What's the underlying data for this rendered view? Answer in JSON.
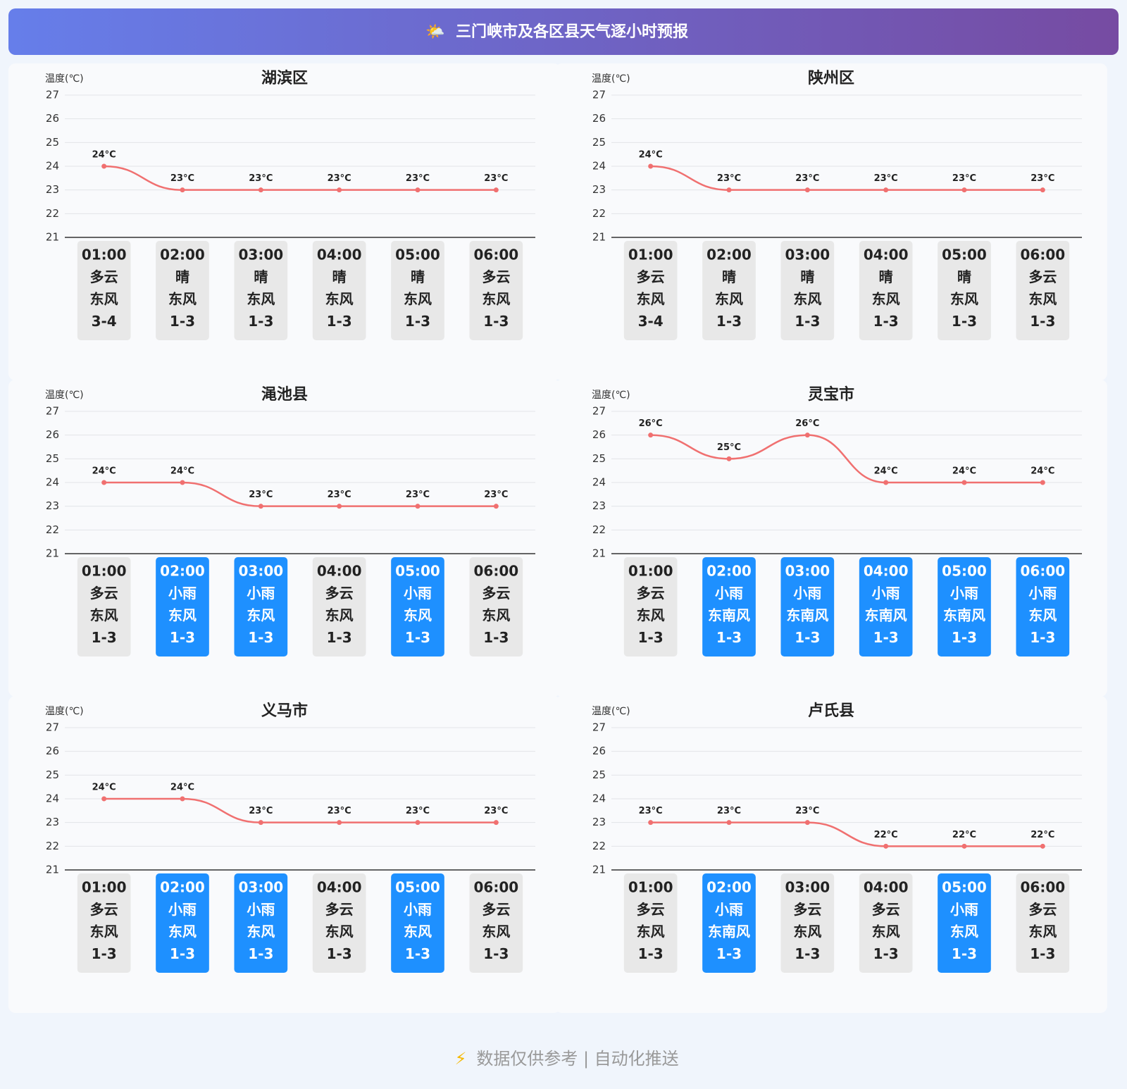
{
  "header": {
    "icon": "🌤️",
    "title": "三门峡市及各区县天气逐小时预报"
  },
  "footer": {
    "icon": "⚡",
    "text": "数据仅供参考 | 自动化推送"
  },
  "chart_data": [
    {
      "type": "line",
      "title": "湖滨区",
      "y_label": "温度(℃)",
      "color": "#f07070",
      "grid": true,
      "categories": [
        "01:00",
        "02:00",
        "03:00",
        "04:00",
        "05:00",
        "06:00"
      ],
      "values": [
        24,
        23,
        23,
        23,
        23,
        23
      ],
      "value_labels": [
        "24°C",
        "23°C",
        "23°C",
        "23°C",
        "23°C",
        "23°C"
      ],
      "ylim": [
        21,
        27
      ],
      "yticks": [
        21,
        22,
        23,
        24,
        25,
        26,
        27
      ],
      "cards": [
        {
          "weather": "多云",
          "wind": "东风",
          "level": "3-4",
          "color": "#e8e8e8"
        },
        {
          "weather": "晴",
          "wind": "东风",
          "level": "1-3",
          "color": "#e8e8e8"
        },
        {
          "weather": "晴",
          "wind": "东风",
          "level": "1-3",
          "color": "#e8e8e8"
        },
        {
          "weather": "晴",
          "wind": "东风",
          "level": "1-3",
          "color": "#e8e8e8"
        },
        {
          "weather": "晴",
          "wind": "东风",
          "level": "1-3",
          "color": "#e8e8e8"
        },
        {
          "weather": "多云",
          "wind": "东风",
          "level": "1-3",
          "color": "#e8e8e8"
        }
      ]
    },
    {
      "type": "line",
      "title": "陕州区",
      "y_label": "温度(℃)",
      "color": "#f07070",
      "grid": true,
      "categories": [
        "01:00",
        "02:00",
        "03:00",
        "04:00",
        "05:00",
        "06:00"
      ],
      "values": [
        24,
        23,
        23,
        23,
        23,
        23
      ],
      "value_labels": [
        "24°C",
        "23°C",
        "23°C",
        "23°C",
        "23°C",
        "23°C"
      ],
      "ylim": [
        21,
        27
      ],
      "yticks": [
        21,
        22,
        23,
        24,
        25,
        26,
        27
      ],
      "cards": [
        {
          "weather": "多云",
          "wind": "东风",
          "level": "3-4",
          "color": "#e8e8e8"
        },
        {
          "weather": "晴",
          "wind": "东风",
          "level": "1-3",
          "color": "#e8e8e8"
        },
        {
          "weather": "晴",
          "wind": "东风",
          "level": "1-3",
          "color": "#e8e8e8"
        },
        {
          "weather": "晴",
          "wind": "东风",
          "level": "1-3",
          "color": "#e8e8e8"
        },
        {
          "weather": "晴",
          "wind": "东风",
          "level": "1-3",
          "color": "#e8e8e8"
        },
        {
          "weather": "多云",
          "wind": "东风",
          "level": "1-3",
          "color": "#e8e8e8"
        }
      ]
    },
    {
      "type": "line",
      "title": "渑池县",
      "y_label": "温度(℃)",
      "color": "#f07070",
      "grid": true,
      "categories": [
        "01:00",
        "02:00",
        "03:00",
        "04:00",
        "05:00",
        "06:00"
      ],
      "values": [
        24,
        24,
        23,
        23,
        23,
        23
      ],
      "value_labels": [
        "24°C",
        "24°C",
        "23°C",
        "23°C",
        "23°C",
        "23°C"
      ],
      "ylim": [
        21,
        27
      ],
      "yticks": [
        21,
        22,
        23,
        24,
        25,
        26,
        27
      ],
      "cards": [
        {
          "weather": "多云",
          "wind": "东风",
          "level": "1-3",
          "color": "#e8e8e8"
        },
        {
          "weather": "小雨",
          "wind": "东风",
          "level": "1-3",
          "color": "#1e90ff"
        },
        {
          "weather": "小雨",
          "wind": "东风",
          "level": "1-3",
          "color": "#1e90ff"
        },
        {
          "weather": "多云",
          "wind": "东风",
          "level": "1-3",
          "color": "#e8e8e8"
        },
        {
          "weather": "小雨",
          "wind": "东风",
          "level": "1-3",
          "color": "#1e90ff"
        },
        {
          "weather": "多云",
          "wind": "东风",
          "level": "1-3",
          "color": "#e8e8e8"
        }
      ]
    },
    {
      "type": "line",
      "title": "灵宝市",
      "y_label": "温度(℃)",
      "color": "#f07070",
      "grid": true,
      "categories": [
        "01:00",
        "02:00",
        "03:00",
        "04:00",
        "05:00",
        "06:00"
      ],
      "values": [
        26,
        25,
        26,
        24,
        24,
        24
      ],
      "value_labels": [
        "26°C",
        "25°C",
        "26°C",
        "24°C",
        "24°C",
        "24°C"
      ],
      "ylim": [
        21,
        27
      ],
      "yticks": [
        21,
        22,
        23,
        24,
        25,
        26,
        27
      ],
      "cards": [
        {
          "weather": "多云",
          "wind": "东风",
          "level": "1-3",
          "color": "#e8e8e8"
        },
        {
          "weather": "小雨",
          "wind": "东南风",
          "level": "1-3",
          "color": "#1e90ff"
        },
        {
          "weather": "小雨",
          "wind": "东南风",
          "level": "1-3",
          "color": "#1e90ff"
        },
        {
          "weather": "小雨",
          "wind": "东南风",
          "level": "1-3",
          "color": "#1e90ff"
        },
        {
          "weather": "小雨",
          "wind": "东南风",
          "level": "1-3",
          "color": "#1e90ff"
        },
        {
          "weather": "小雨",
          "wind": "东风",
          "level": "1-3",
          "color": "#1e90ff"
        }
      ]
    },
    {
      "type": "line",
      "title": "义马市",
      "y_label": "温度(℃)",
      "color": "#f07070",
      "grid": true,
      "categories": [
        "01:00",
        "02:00",
        "03:00",
        "04:00",
        "05:00",
        "06:00"
      ],
      "values": [
        24,
        24,
        23,
        23,
        23,
        23
      ],
      "value_labels": [
        "24°C",
        "24°C",
        "23°C",
        "23°C",
        "23°C",
        "23°C"
      ],
      "ylim": [
        21,
        27
      ],
      "yticks": [
        21,
        22,
        23,
        24,
        25,
        26,
        27
      ],
      "cards": [
        {
          "weather": "多云",
          "wind": "东风",
          "level": "1-3",
          "color": "#e8e8e8"
        },
        {
          "weather": "小雨",
          "wind": "东风",
          "level": "1-3",
          "color": "#1e90ff"
        },
        {
          "weather": "小雨",
          "wind": "东风",
          "level": "1-3",
          "color": "#1e90ff"
        },
        {
          "weather": "多云",
          "wind": "东风",
          "level": "1-3",
          "color": "#e8e8e8"
        },
        {
          "weather": "小雨",
          "wind": "东风",
          "level": "1-3",
          "color": "#1e90ff"
        },
        {
          "weather": "多云",
          "wind": "东风",
          "level": "1-3",
          "color": "#e8e8e8"
        }
      ]
    },
    {
      "type": "line",
      "title": "卢氏县",
      "y_label": "温度(℃)",
      "color": "#f07070",
      "grid": true,
      "categories": [
        "01:00",
        "02:00",
        "03:00",
        "04:00",
        "05:00",
        "06:00"
      ],
      "values": [
        23,
        23,
        23,
        22,
        22,
        22
      ],
      "value_labels": [
        "23°C",
        "23°C",
        "23°C",
        "22°C",
        "22°C",
        "22°C"
      ],
      "ylim": [
        21,
        27
      ],
      "yticks": [
        21,
        22,
        23,
        24,
        25,
        26,
        27
      ],
      "cards": [
        {
          "weather": "多云",
          "wind": "东风",
          "level": "1-3",
          "color": "#e8e8e8"
        },
        {
          "weather": "小雨",
          "wind": "东南风",
          "level": "1-3",
          "color": "#1e90ff"
        },
        {
          "weather": "多云",
          "wind": "东风",
          "level": "1-3",
          "color": "#e8e8e8"
        },
        {
          "weather": "多云",
          "wind": "东风",
          "level": "1-3",
          "color": "#e8e8e8"
        },
        {
          "weather": "小雨",
          "wind": "东风",
          "level": "1-3",
          "color": "#1e90ff"
        },
        {
          "weather": "多云",
          "wind": "东风",
          "level": "1-3",
          "color": "#e8e8e8"
        }
      ]
    }
  ]
}
